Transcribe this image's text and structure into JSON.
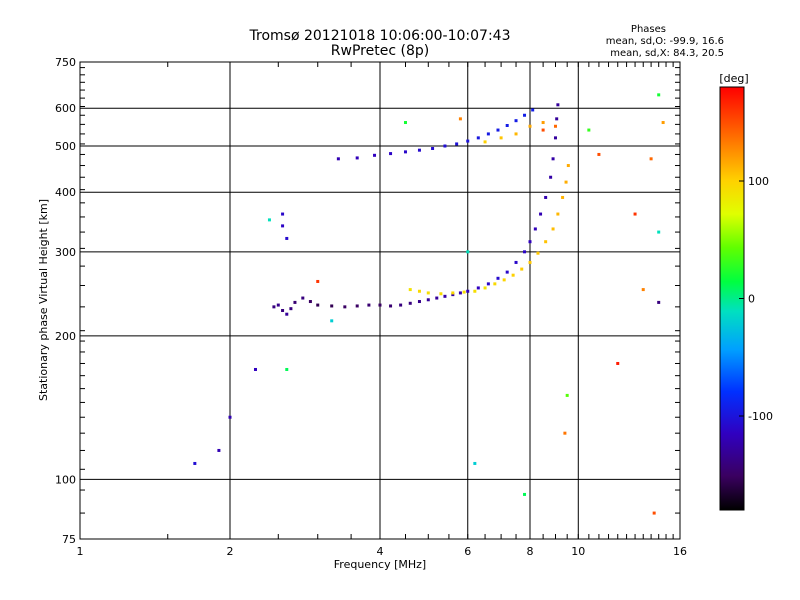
{
  "header": {
    "title_line1": "Tromsø 20121018 10:06:00-10:07:43",
    "title_line2": "RwPretec (8p)"
  },
  "phase_box": {
    "heading": "Phases",
    "line_o": "mean, sd,O: -99.9, 16.6",
    "line_x": "mean, sd,X:  84.3, 20.5"
  },
  "colorbar": {
    "label": "[deg]",
    "ticks": [
      "100",
      "0",
      "-100"
    ],
    "tick_values": [
      100,
      0,
      -100
    ],
    "range": [
      -180,
      180
    ]
  },
  "chart_data": {
    "type": "scatter",
    "xlabel": "Frequency [MHz]",
    "ylabel": "Stationary phase Virtual Height [km]",
    "xscale": "log",
    "yscale": "log",
    "xlim": [
      1,
      16
    ],
    "ylim": [
      75,
      750
    ],
    "xticks": [
      1,
      2,
      4,
      6,
      8,
      10,
      16
    ],
    "xtick_labels": [
      "1",
      "2",
      "4",
      "6",
      "8",
      "10",
      "16"
    ],
    "yticks": [
      75,
      100,
      200,
      300,
      400,
      500,
      600,
      750
    ],
    "ytick_labels": [
      "75",
      "100",
      "200",
      "300",
      "400",
      "500",
      "600",
      "750"
    ],
    "grid": true,
    "color_meaning": "phase",
    "series": [
      {
        "points": [
          [
            2.45,
            230,
            -140
          ],
          [
            2.5,
            232,
            -135
          ],
          [
            2.55,
            226,
            -140
          ],
          [
            2.6,
            222,
            -130
          ],
          [
            2.65,
            228,
            -140
          ],
          [
            2.7,
            235,
            -145
          ],
          [
            2.8,
            240,
            -140
          ],
          [
            2.9,
            236,
            -150
          ],
          [
            3.0,
            232,
            -155
          ],
          [
            3.2,
            231,
            -155
          ],
          [
            3.4,
            230,
            -150
          ],
          [
            3.6,
            231,
            -150
          ],
          [
            3.8,
            232,
            -145
          ],
          [
            4.0,
            232,
            -150
          ],
          [
            4.2,
            231,
            -145
          ],
          [
            4.4,
            232,
            -140
          ],
          [
            4.6,
            234,
            -140
          ],
          [
            4.8,
            236,
            -135
          ],
          [
            5.0,
            238,
            -130
          ],
          [
            5.2,
            240,
            -130
          ],
          [
            5.4,
            242,
            -125
          ],
          [
            5.6,
            244,
            -125
          ],
          [
            5.8,
            246,
            -120
          ],
          [
            6.0,
            248,
            -118
          ],
          [
            6.3,
            252,
            -115
          ],
          [
            6.6,
            257,
            -110
          ],
          [
            6.9,
            264,
            -108
          ],
          [
            7.2,
            272,
            -110
          ],
          [
            7.5,
            285,
            -110
          ],
          [
            7.8,
            300,
            -112
          ],
          [
            8.0,
            315,
            -115
          ],
          [
            8.2,
            335,
            -118
          ],
          [
            8.4,
            360,
            -120
          ],
          [
            8.6,
            390,
            -122
          ],
          [
            8.8,
            430,
            -125
          ],
          [
            8.9,
            470,
            -125
          ],
          [
            9.0,
            520,
            -128
          ],
          [
            9.05,
            570,
            -130
          ],
          [
            9.1,
            610,
            -130
          ],
          [
            3.3,
            470,
            -120
          ],
          [
            3.6,
            472,
            -118
          ],
          [
            3.9,
            478,
            -115
          ],
          [
            4.2,
            482,
            -112
          ],
          [
            4.5,
            486,
            -110
          ],
          [
            4.8,
            490,
            -108
          ],
          [
            5.1,
            494,
            -106
          ],
          [
            5.4,
            500,
            -104
          ],
          [
            5.7,
            505,
            -102
          ],
          [
            6.0,
            512,
            -100
          ],
          [
            6.3,
            520,
            -98
          ],
          [
            6.6,
            530,
            -96
          ],
          [
            6.9,
            540,
            -95
          ],
          [
            7.2,
            552,
            -94
          ],
          [
            7.5,
            565,
            -94
          ],
          [
            7.8,
            580,
            -93
          ],
          [
            8.1,
            595,
            -93
          ],
          [
            2.55,
            360,
            -110
          ],
          [
            2.55,
            340,
            -112
          ],
          [
            2.6,
            320,
            -108
          ],
          [
            2.25,
            170,
            -115
          ],
          [
            2.0,
            135,
            -120
          ],
          [
            1.9,
            115,
            -120
          ],
          [
            1.7,
            108,
            -105
          ]
        ]
      },
      {
        "points": [
          [
            4.6,
            250,
            90
          ],
          [
            4.8,
            248,
            95
          ],
          [
            5.0,
            246,
            92
          ],
          [
            5.3,
            245,
            94
          ],
          [
            5.6,
            246,
            96
          ],
          [
            5.9,
            247,
            93
          ],
          [
            6.2,
            248,
            92
          ],
          [
            6.5,
            252,
            90
          ],
          [
            6.8,
            257,
            95
          ],
          [
            7.1,
            262,
            98
          ],
          [
            7.4,
            268,
            100
          ],
          [
            7.7,
            276,
            102
          ],
          [
            8.0,
            285,
            104
          ],
          [
            8.3,
            298,
            104
          ],
          [
            8.6,
            315,
            106
          ],
          [
            8.9,
            335,
            108
          ],
          [
            9.1,
            360,
            110
          ],
          [
            9.3,
            390,
            112
          ],
          [
            9.45,
            420,
            114
          ],
          [
            9.55,
            455,
            115
          ],
          [
            6.5,
            510,
            100
          ],
          [
            7.0,
            520,
            105
          ],
          [
            7.5,
            530,
            110
          ],
          [
            8.0,
            550,
            115
          ],
          [
            8.5,
            560,
            120
          ]
        ]
      },
      {
        "points": [
          [
            2.4,
            350,
            -10
          ],
          [
            2.6,
            170,
            10
          ],
          [
            3.2,
            215,
            -20
          ],
          [
            4.5,
            560,
            20
          ],
          [
            6.0,
            300,
            -10
          ],
          [
            6.2,
            108,
            -20
          ],
          [
            7.8,
            93,
            10
          ],
          [
            8.5,
            540,
            150
          ],
          [
            9.0,
            550,
            140
          ],
          [
            9.4,
            125,
            135
          ],
          [
            9.5,
            150,
            40
          ],
          [
            10.5,
            540,
            30
          ],
          [
            11.0,
            480,
            150
          ],
          [
            12.0,
            175,
            170
          ],
          [
            13.0,
            360,
            160
          ],
          [
            13.5,
            250,
            130
          ],
          [
            14.0,
            470,
            140
          ],
          [
            14.5,
            640,
            20
          ],
          [
            14.2,
            85,
            150
          ],
          [
            14.8,
            560,
            120
          ],
          [
            3.0,
            260,
            160
          ],
          [
            5.8,
            570,
            130
          ],
          [
            14.5,
            235,
            -140
          ],
          [
            14.5,
            330,
            -10
          ]
        ]
      }
    ]
  }
}
